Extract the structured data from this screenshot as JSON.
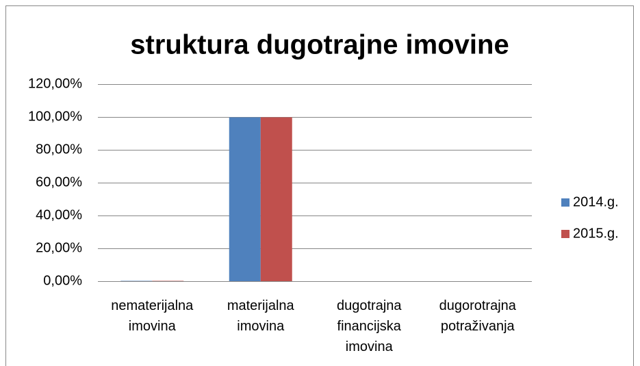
{
  "chart_data": {
    "type": "bar",
    "title": "struktura dugotrajne imovine",
    "categories": [
      "nematerijalna imovina",
      "materijalna imovina",
      "dugotrajna financijska imovina",
      "dugorotrajna potraživanja"
    ],
    "series": [
      {
        "name": "2014.g.",
        "color": "#4f81bd",
        "values": [
          0.2,
          99.8,
          0,
          0
        ]
      },
      {
        "name": "2015.g.",
        "color": "#c0504d",
        "values": [
          0.2,
          99.8,
          0,
          0
        ]
      }
    ],
    "ylim": [
      0,
      120
    ],
    "yticks": [
      {
        "value": 0,
        "label": "0,00%"
      },
      {
        "value": 20,
        "label": "20,00%"
      },
      {
        "value": 40,
        "label": "40,00%"
      },
      {
        "value": 60,
        "label": "60,00%"
      },
      {
        "value": 80,
        "label": "80,00%"
      },
      {
        "value": 100,
        "label": "100,00%"
      },
      {
        "value": 120,
        "label": "120,00%"
      }
    ],
    "grid": true,
    "legend": "right"
  }
}
